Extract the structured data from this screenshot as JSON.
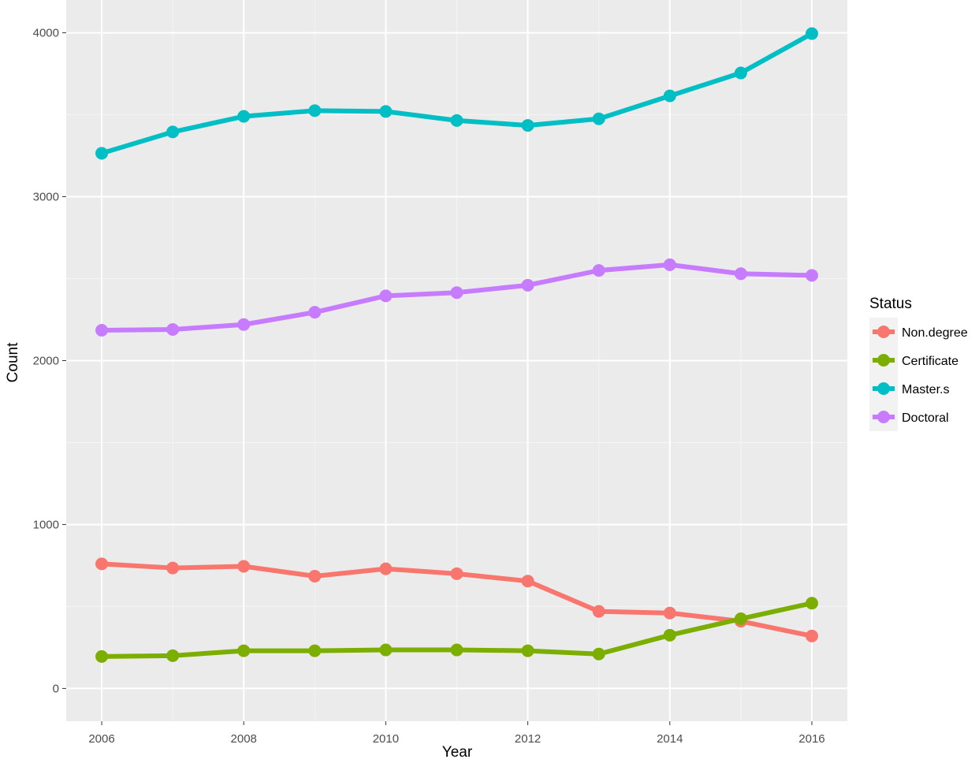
{
  "chart_data": {
    "type": "line",
    "xlabel": "Year",
    "ylabel": "Count",
    "x": [
      2006,
      2007,
      2008,
      2009,
      2010,
      2011,
      2012,
      2013,
      2014,
      2015,
      2016
    ],
    "xlim": [
      2005.5,
      2016.5
    ],
    "ylim": [
      -200,
      4200
    ],
    "x_ticks": [
      2006,
      2008,
      2010,
      2012,
      2014,
      2016
    ],
    "y_ticks": [
      0,
      1000,
      2000,
      3000,
      4000
    ],
    "grid": true,
    "legend": {
      "title": "Status",
      "position": "right"
    },
    "series": [
      {
        "name": "Non.degree",
        "color": "#F8766D",
        "values": [
          760,
          735,
          745,
          685,
          730,
          700,
          655,
          470,
          460,
          410,
          320
        ]
      },
      {
        "name": "Certificate",
        "color": "#7CAE00",
        "values": [
          195,
          200,
          230,
          230,
          235,
          235,
          230,
          210,
          325,
          425,
          520
        ]
      },
      {
        "name": "Master.s",
        "color": "#00BFC4",
        "values": [
          3265,
          3395,
          3490,
          3525,
          3520,
          3465,
          3435,
          3475,
          3615,
          3755,
          3995
        ]
      },
      {
        "name": "Doctoral",
        "color": "#C77CFF",
        "values": [
          2185,
          2190,
          2220,
          2295,
          2395,
          2415,
          2460,
          2550,
          2585,
          2530,
          2520
        ]
      }
    ]
  }
}
